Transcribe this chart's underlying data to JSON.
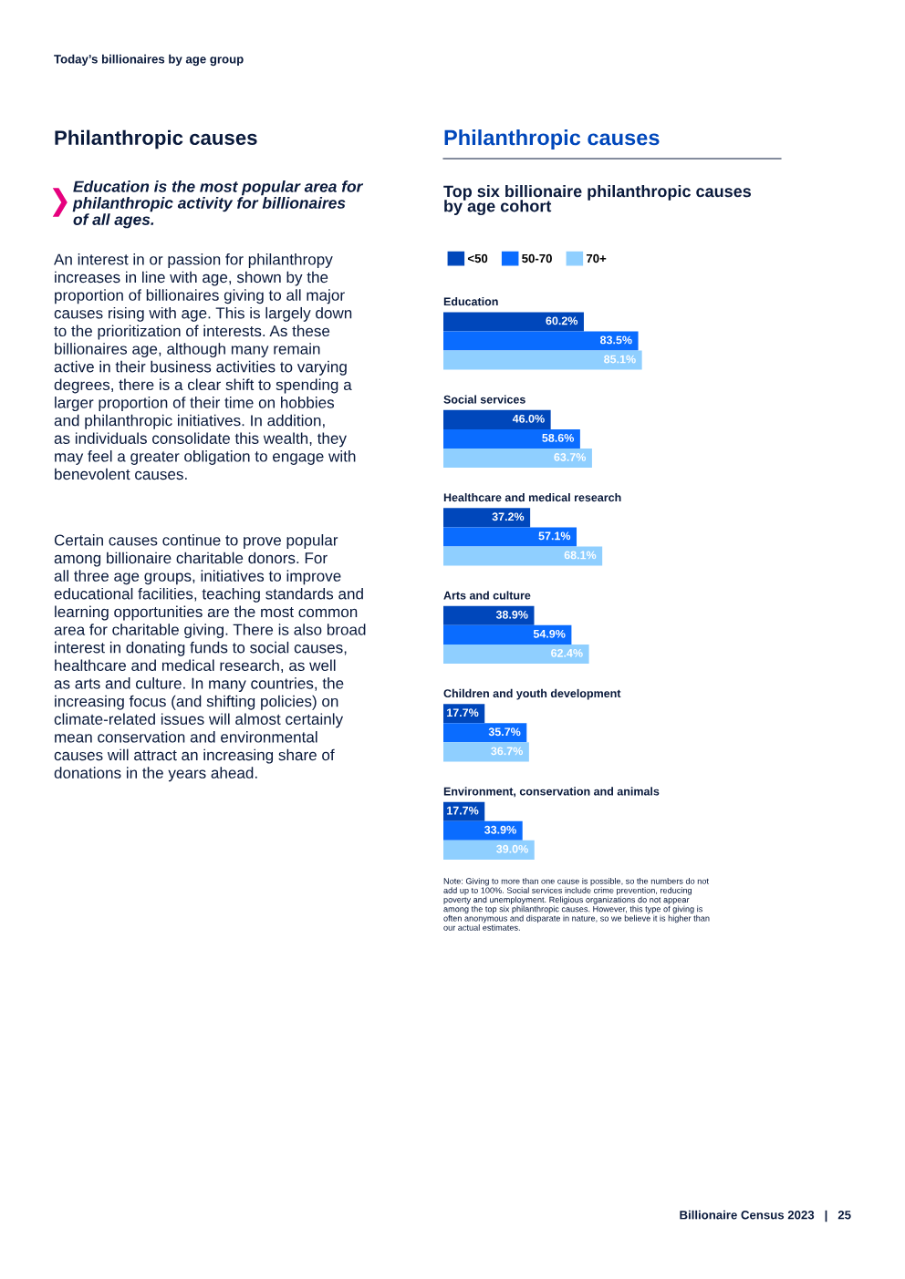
{
  "chart_data": {
    "type": "bar",
    "orientation": "horizontal",
    "title": "Philanthropic causes",
    "subtitle": "Top six billionaire philanthropic causes\nby age cohort",
    "categories": [
      "Education",
      "Social services",
      "Healthcare and medical research",
      "Arts and culture",
      "Children and youth development",
      "Environment, conservation and animals"
    ],
    "series": [
      {
        "name": "<50",
        "color": "#0047bb",
        "values": [
          60.2,
          46.0,
          37.2,
          38.9,
          17.7,
          17.7
        ],
        "value_labels": [
          "60.2%",
          "46.0%",
          "37.2%",
          "38.9%",
          "17.7%",
          "17.7%"
        ]
      },
      {
        "name": "50-70",
        "color": "#0a6cff",
        "values": [
          83.5,
          58.6,
          57.1,
          54.9,
          35.7,
          33.9
        ],
        "value_labels": [
          "83.5%",
          "58.6%",
          "57.1%",
          "54.9%",
          "35.7%",
          "33.9%"
        ]
      },
      {
        "name": "70+",
        "color": "#8fcfff",
        "values": [
          85.1,
          63.7,
          68.1,
          62.4,
          36.7,
          39.0
        ],
        "value_labels": [
          "85.1%",
          "63.7%",
          "68.1%",
          "62.4%",
          "36.7%",
          "39.0%"
        ]
      }
    ],
    "legend": "top left",
    "annotations": [
      "Today’s billionaires by age group",
      "Philanthropic causes",
      "Education is the most popular area for\nphilanthropic activity for billionaires\nof all ages.",
      "An interest in or passion for philanthropy\nincreases in line with age, shown by the\nproportion of billionaires giving to all major\ncauses rising with age. This is largely down\nto the prioritization of interests. As these\nbillionaires age, although many remain\nactive in their business activities to varying\ndegrees, there is a clear shift to spending a\nlarger proportion of their time on hobbies\nand philanthropic initiatives. In addition,\nas individuals consolidate this wealth, they\nmay feel a greater obligation to engage with\nbenevolent causes.",
      "Certain causes continue to prove popular\namong billionaire charitable donors. For\nall three age groups, initiatives to improve\neducational facilities, teaching standards and\nlearning opportunities are the most common\narea for charitable giving. There is also broad\ninterest in donating funds to social causes,\nhealthcare and medical research, as well\nas arts and culture. In many countries, the\nincreasing focus (and shifting policies) on\nclimate-related issues will almost certainly\nmean conservation and environmental\ncauses will attract an increasing share of\ndonations in the years ahead.",
      "Note: Giving to more than one cause is possible, so the numbers do not\nadd up to 100%. Social services include crime prevention, reducing\npoverty and unemployment. Religious organizations do not appear\namong the top six philanthropic causes. However, this type of giving is\noften anonymous and disparate in nature, so we believe it is higher than\nour actual estimates.",
      "Billionaire Census 2023   |   25"
    ]
  }
}
